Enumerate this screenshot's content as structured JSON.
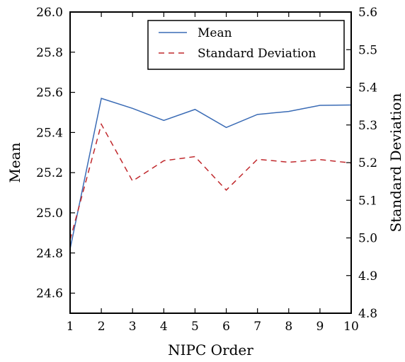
{
  "chart_data": {
    "type": "line",
    "x": [
      1,
      2,
      3,
      4,
      5,
      6,
      7,
      8,
      9,
      10
    ],
    "xlabel": "NIPC Order",
    "xlim": [
      1,
      10
    ],
    "xticks": [
      "1",
      "2",
      "3",
      "4",
      "5",
      "6",
      "7",
      "8",
      "9",
      "10"
    ],
    "ylabel_left": "Mean",
    "ylim_left": [
      24.5,
      26.0
    ],
    "yticks_left": [
      "24.6",
      "24.8",
      "25.0",
      "25.2",
      "25.4",
      "25.6",
      "25.8",
      "26.0"
    ],
    "ylabel_right": "Standard Deviation",
    "ylim_right": [
      4.8,
      5.6
    ],
    "yticks_right": [
      "4.8",
      "4.9",
      "5.0",
      "5.1",
      "5.2",
      "5.3",
      "5.4",
      "5.5",
      "5.6"
    ],
    "grid": false,
    "legend_position": "top-right",
    "series": [
      {
        "name": "Mean",
        "axis": "left",
        "style": "solid",
        "color": "#3a6bb5",
        "values": [
          24.82,
          25.57,
          25.52,
          25.46,
          25.515,
          25.425,
          25.49,
          25.505,
          25.535,
          25.537
        ]
      },
      {
        "name": "Standard Deviation",
        "axis": "right",
        "style": "dashed",
        "color": "#c0282c",
        "values": [
          4.995,
          5.302,
          5.151,
          5.205,
          5.216,
          5.127,
          5.209,
          5.201,
          5.208,
          5.199
        ]
      }
    ]
  }
}
